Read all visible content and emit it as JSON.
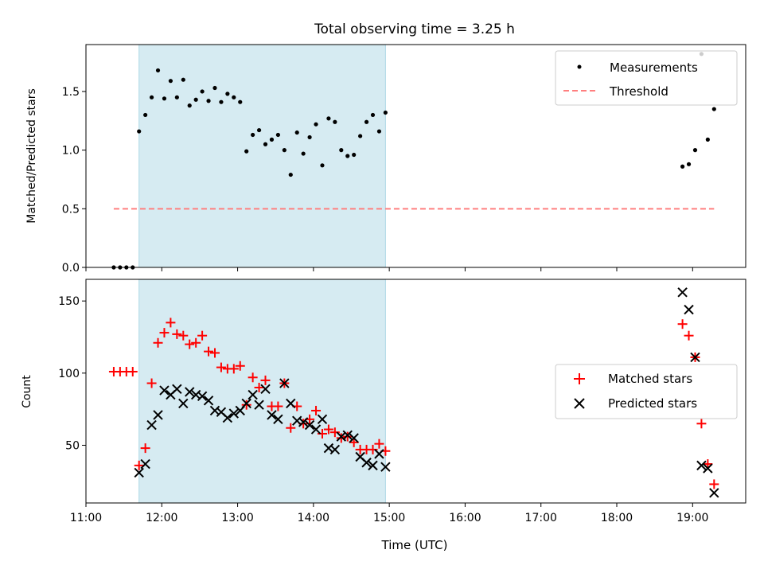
{
  "chart_data": [
    {
      "type": "scatter",
      "title": "Total observing time = 3.25 h",
      "ylabel": "Matched/Predicted stars",
      "xlabel": "",
      "ylim": [
        0,
        1.9
      ],
      "yticks": [
        0.0,
        0.5,
        1.0,
        1.5
      ],
      "ytick_labels": [
        "0.0",
        "0.5",
        "1.0",
        "1.5"
      ],
      "xlim": [
        "11:00",
        "19:42"
      ],
      "shaded_span": {
        "start": "11:42",
        "end": "14:57",
        "color": "#add8e6"
      },
      "grid": false,
      "legend_position": "top-right",
      "series": [
        {
          "name": "Measurements",
          "marker": "dot",
          "color": "#000000",
          "x": [
            "11:22",
            "11:27",
            "11:32",
            "11:37",
            "11:42",
            "11:47",
            "11:52",
            "11:57",
            "12:02",
            "12:07",
            "12:12",
            "12:17",
            "12:22",
            "12:27",
            "12:32",
            "12:37",
            "12:42",
            "12:47",
            "12:52",
            "12:57",
            "13:02",
            "13:07",
            "13:12",
            "13:17",
            "13:22",
            "13:27",
            "13:32",
            "13:37",
            "13:42",
            "13:47",
            "13:52",
            "13:57",
            "14:02",
            "14:07",
            "14:12",
            "14:17",
            "14:22",
            "14:27",
            "14:32",
            "14:37",
            "14:42",
            "14:47",
            "14:52",
            "14:57",
            "18:52",
            "18:57",
            "19:02",
            "19:07",
            "19:12",
            "19:17"
          ],
          "y": [
            0,
            0,
            0,
            0,
            1.16,
            1.3,
            1.45,
            1.68,
            1.44,
            1.59,
            1.45,
            1.6,
            1.38,
            1.43,
            1.5,
            1.42,
            1.53,
            1.41,
            1.48,
            1.45,
            1.41,
            0.99,
            1.13,
            1.17,
            1.05,
            1.09,
            1.13,
            1.0,
            0.79,
            1.15,
            0.97,
            1.11,
            1.22,
            0.87,
            1.27,
            1.24,
            1.0,
            0.95,
            0.96,
            1.12,
            1.24,
            1.3,
            1.16,
            1.32,
            0.86,
            0.88,
            1.0,
            1.82,
            1.09,
            1.35
          ]
        },
        {
          "name": "Threshold",
          "marker": "dashed-line",
          "color": "#ff7f7f",
          "x": [
            "11:22",
            "19:17"
          ],
          "y": [
            0.5,
            0.5
          ]
        }
      ]
    },
    {
      "type": "scatter",
      "title": "",
      "ylabel": "Count",
      "xlabel": "Time (UTC)",
      "ylim": [
        10,
        165
      ],
      "yticks": [
        50,
        100,
        150
      ],
      "ytick_labels": [
        "50",
        "100",
        "150"
      ],
      "xlim": [
        "11:00",
        "19:42"
      ],
      "xticks": [
        "11:00",
        "12:00",
        "13:00",
        "14:00",
        "15:00",
        "16:00",
        "17:00",
        "18:00",
        "19:00"
      ],
      "shaded_span": {
        "start": "11:42",
        "end": "14:57",
        "color": "#add8e6"
      },
      "grid": false,
      "legend_position": "center-right",
      "series": [
        {
          "name": "Matched stars",
          "marker": "plus",
          "color": "#ff0000",
          "x": [
            "11:22",
            "11:27",
            "11:32",
            "11:37",
            "11:42",
            "11:47",
            "11:52",
            "11:57",
            "12:02",
            "12:07",
            "12:12",
            "12:17",
            "12:22",
            "12:27",
            "12:32",
            "12:37",
            "12:42",
            "12:47",
            "12:52",
            "12:57",
            "13:02",
            "13:07",
            "13:12",
            "13:17",
            "13:22",
            "13:27",
            "13:32",
            "13:37",
            "13:42",
            "13:47",
            "13:52",
            "13:57",
            "14:02",
            "14:07",
            "14:12",
            "14:17",
            "14:22",
            "14:27",
            "14:32",
            "14:37",
            "14:42",
            "14:47",
            "14:52",
            "14:57",
            "18:52",
            "18:57",
            "19:02",
            "19:07",
            "19:12",
            "19:17"
          ],
          "y": [
            101,
            101,
            101,
            101,
            36,
            48,
            93,
            121,
            128,
            135,
            127,
            126,
            120,
            121,
            126,
            115,
            114,
            104,
            103,
            103,
            105,
            78,
            97,
            90,
            95,
            77,
            77,
            93,
            62,
            77,
            65,
            68,
            74,
            58,
            61,
            59,
            55,
            56,
            52,
            47,
            47,
            47,
            51,
            46,
            134,
            126,
            111,
            65,
            37,
            23
          ]
        },
        {
          "name": "Predicted stars",
          "marker": "x",
          "color": "#000000",
          "x": [
            "11:42",
            "11:47",
            "11:52",
            "11:57",
            "12:02",
            "12:07",
            "12:12",
            "12:17",
            "12:22",
            "12:27",
            "12:32",
            "12:37",
            "12:42",
            "12:47",
            "12:52",
            "12:57",
            "13:02",
            "13:07",
            "13:12",
            "13:17",
            "13:22",
            "13:27",
            "13:32",
            "13:37",
            "13:42",
            "13:47",
            "13:52",
            "13:57",
            "14:02",
            "14:07",
            "14:12",
            "14:17",
            "14:22",
            "14:27",
            "14:32",
            "14:37",
            "14:42",
            "14:47",
            "14:52",
            "14:57",
            "18:52",
            "18:57",
            "19:02",
            "19:07",
            "19:12",
            "19:17"
          ],
          "y": [
            31,
            37,
            64,
            71,
            88,
            85,
            89,
            79,
            87,
            85,
            84,
            81,
            74,
            73,
            69,
            72,
            74,
            79,
            85,
            78,
            89,
            71,
            68,
            93,
            79,
            67,
            66,
            64,
            61,
            68,
            48,
            47,
            56,
            57,
            55,
            42,
            38,
            36,
            44,
            35,
            156,
            144,
            111,
            36,
            34,
            17
          ]
        }
      ]
    }
  ]
}
